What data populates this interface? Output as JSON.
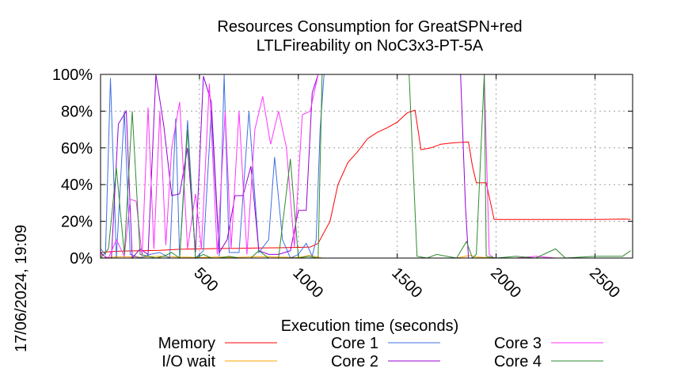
{
  "timestamp": "17/06/2024, 19:09",
  "chart_data": {
    "type": "line",
    "title": [
      "Resources Consumption for GreatSPN+red",
      "LTLFireability on NoC3x3-PT-5A"
    ],
    "xlabel": "Execution time (seconds)",
    "ylabel": "",
    "xlim": [
      0,
      2690
    ],
    "ylim": [
      0,
      100
    ],
    "xticks": [
      500,
      1000,
      1500,
      2000,
      2500
    ],
    "yticks": [
      0,
      20,
      40,
      60,
      80,
      100
    ],
    "ytick_labels": [
      "0%",
      "20%",
      "40%",
      "60%",
      "80%",
      "100%"
    ],
    "grid": true,
    "legend_position": "bottom",
    "series": [
      {
        "name": "Memory",
        "color": "#ff0000",
        "points": [
          [
            0,
            3
          ],
          [
            50,
            3.5
          ],
          [
            100,
            3.8
          ],
          [
            200,
            4
          ],
          [
            300,
            4.2
          ],
          [
            400,
            4.8
          ],
          [
            500,
            5
          ],
          [
            600,
            5.2
          ],
          [
            700,
            5.3
          ],
          [
            800,
            5.5
          ],
          [
            900,
            5.6
          ],
          [
            1000,
            5.8
          ],
          [
            1060,
            6
          ],
          [
            1100,
            8
          ],
          [
            1160,
            20
          ],
          [
            1200,
            40
          ],
          [
            1250,
            52
          ],
          [
            1300,
            58
          ],
          [
            1350,
            65
          ],
          [
            1400,
            68.5
          ],
          [
            1450,
            71
          ],
          [
            1500,
            74
          ],
          [
            1550,
            79
          ],
          [
            1590,
            80.5
          ],
          [
            1620,
            59
          ],
          [
            1670,
            60
          ],
          [
            1720,
            62
          ],
          [
            1790,
            62.8
          ],
          [
            1860,
            63.2
          ],
          [
            1880,
            50
          ],
          [
            1900,
            41
          ],
          [
            1950,
            41
          ],
          [
            1990,
            21
          ],
          [
            2100,
            21
          ],
          [
            2300,
            21
          ],
          [
            2500,
            21
          ],
          [
            2650,
            21.2
          ],
          [
            2680,
            21
          ]
        ]
      },
      {
        "name": "I/O wait",
        "color": "#ffa500",
        "points": [
          [
            0,
            0
          ],
          [
            100,
            0.8
          ],
          [
            200,
            0.5
          ],
          [
            300,
            1
          ],
          [
            400,
            0.5
          ],
          [
            500,
            0.3
          ],
          [
            600,
            0.6
          ],
          [
            700,
            0.4
          ],
          [
            800,
            0.8
          ],
          [
            900,
            0.5
          ],
          [
            1000,
            0.3
          ],
          [
            1060,
            1.5
          ],
          [
            1120,
            0
          ],
          [
            1800,
            0
          ],
          [
            1870,
            1.5
          ],
          [
            1900,
            0.5
          ],
          [
            2000,
            0
          ],
          [
            2680,
            0
          ]
        ]
      },
      {
        "name": "Core 1",
        "color": "#4070e0",
        "points": [
          [
            0,
            5
          ],
          [
            25,
            2
          ],
          [
            50,
            98
          ],
          [
            80,
            0
          ],
          [
            120,
            80
          ],
          [
            150,
            2
          ],
          [
            200,
            0
          ],
          [
            250,
            2
          ],
          [
            300,
            3
          ],
          [
            350,
            0
          ],
          [
            380,
            76
          ],
          [
            400,
            0
          ],
          [
            440,
            75
          ],
          [
            480,
            0
          ],
          [
            520,
            4
          ],
          [
            560,
            80
          ],
          [
            600,
            1
          ],
          [
            625,
            100
          ],
          [
            650,
            3
          ],
          [
            700,
            3
          ],
          [
            750,
            80
          ],
          [
            800,
            3
          ],
          [
            850,
            10
          ],
          [
            880,
            55
          ],
          [
            920,
            10
          ],
          [
            960,
            0
          ],
          [
            1000,
            2
          ],
          [
            1040,
            8
          ],
          [
            1070,
            1
          ],
          [
            1090,
            10
          ],
          [
            1110,
            70
          ],
          [
            1130,
            100
          ],
          [
            1600,
            100
          ],
          [
            2000,
            100
          ],
          [
            2680,
            100
          ]
        ]
      },
      {
        "name": "Core 2",
        "color": "#9400d3",
        "points": [
          [
            0,
            3
          ],
          [
            30,
            0
          ],
          [
            55,
            0
          ],
          [
            90,
            73
          ],
          [
            130,
            80
          ],
          [
            160,
            0
          ],
          [
            200,
            5
          ],
          [
            240,
            2
          ],
          [
            280,
            100
          ],
          [
            320,
            72
          ],
          [
            360,
            34
          ],
          [
            400,
            35
          ],
          [
            440,
            60
          ],
          [
            480,
            3
          ],
          [
            520,
            99
          ],
          [
            560,
            85
          ],
          [
            600,
            3
          ],
          [
            640,
            10
          ],
          [
            680,
            34
          ],
          [
            720,
            34
          ],
          [
            760,
            50
          ],
          [
            800,
            4
          ],
          [
            850,
            2
          ],
          [
            900,
            2
          ],
          [
            960,
            4
          ],
          [
            1000,
            26
          ],
          [
            1040,
            26
          ],
          [
            1070,
            90
          ],
          [
            1100,
            100
          ],
          [
            1600,
            100
          ],
          [
            1820,
            100
          ],
          [
            1845,
            28
          ],
          [
            1860,
            0
          ],
          [
            1900,
            0
          ],
          [
            2000,
            0
          ],
          [
            2680,
            0
          ]
        ]
      },
      {
        "name": "Core 3",
        "color": "#ff33ff",
        "points": [
          [
            0,
            2
          ],
          [
            40,
            0
          ],
          [
            80,
            10
          ],
          [
            120,
            1
          ],
          [
            150,
            32
          ],
          [
            180,
            31
          ],
          [
            210,
            1
          ],
          [
            240,
            82
          ],
          [
            270,
            5
          ],
          [
            300,
            80
          ],
          [
            330,
            7
          ],
          [
            360,
            60
          ],
          [
            400,
            85
          ],
          [
            440,
            5
          ],
          [
            480,
            35
          ],
          [
            510,
            5
          ],
          [
            550,
            95
          ],
          [
            590,
            2
          ],
          [
            630,
            80
          ],
          [
            660,
            5
          ],
          [
            700,
            80
          ],
          [
            740,
            2
          ],
          [
            780,
            70
          ],
          [
            820,
            88
          ],
          [
            860,
            62
          ],
          [
            900,
            80
          ],
          [
            940,
            60
          ],
          [
            980,
            6
          ],
          [
            1020,
            78
          ],
          [
            1060,
            80
          ],
          [
            1100,
            100
          ],
          [
            1900,
            100
          ],
          [
            1940,
            100
          ],
          [
            1965,
            2
          ],
          [
            1990,
            0
          ],
          [
            2100,
            0
          ],
          [
            2200,
            1
          ],
          [
            2300,
            0
          ],
          [
            2680,
            0
          ]
        ]
      },
      {
        "name": "Core 4",
        "color": "#2e8b2e",
        "points": [
          [
            0,
            0
          ],
          [
            40,
            5
          ],
          [
            80,
            49
          ],
          [
            120,
            2
          ],
          [
            160,
            80
          ],
          [
            200,
            2
          ],
          [
            240,
            1
          ],
          [
            280,
            0
          ],
          [
            320,
            1
          ],
          [
            360,
            3
          ],
          [
            400,
            0
          ],
          [
            440,
            70
          ],
          [
            480,
            0
          ],
          [
            520,
            2
          ],
          [
            560,
            0
          ],
          [
            600,
            0
          ],
          [
            650,
            1
          ],
          [
            700,
            0
          ],
          [
            760,
            0
          ],
          [
            800,
            4
          ],
          [
            850,
            0
          ],
          [
            900,
            0
          ],
          [
            960,
            54
          ],
          [
            1000,
            0
          ],
          [
            1050,
            1
          ],
          [
            1100,
            0
          ],
          [
            1120,
            100
          ],
          [
            1560,
            100
          ],
          [
            1600,
            1
          ],
          [
            1650,
            0
          ],
          [
            1700,
            2
          ],
          [
            1750,
            1
          ],
          [
            1800,
            0
          ],
          [
            1850,
            9
          ],
          [
            1880,
            0
          ],
          [
            1900,
            2
          ],
          [
            1940,
            100
          ],
          [
            1950,
            1
          ],
          [
            2000,
            0
          ],
          [
            2100,
            1
          ],
          [
            2200,
            0
          ],
          [
            2300,
            5
          ],
          [
            2350,
            0
          ],
          [
            2500,
            1
          ],
          [
            2640,
            1
          ],
          [
            2680,
            4
          ]
        ]
      }
    ]
  }
}
